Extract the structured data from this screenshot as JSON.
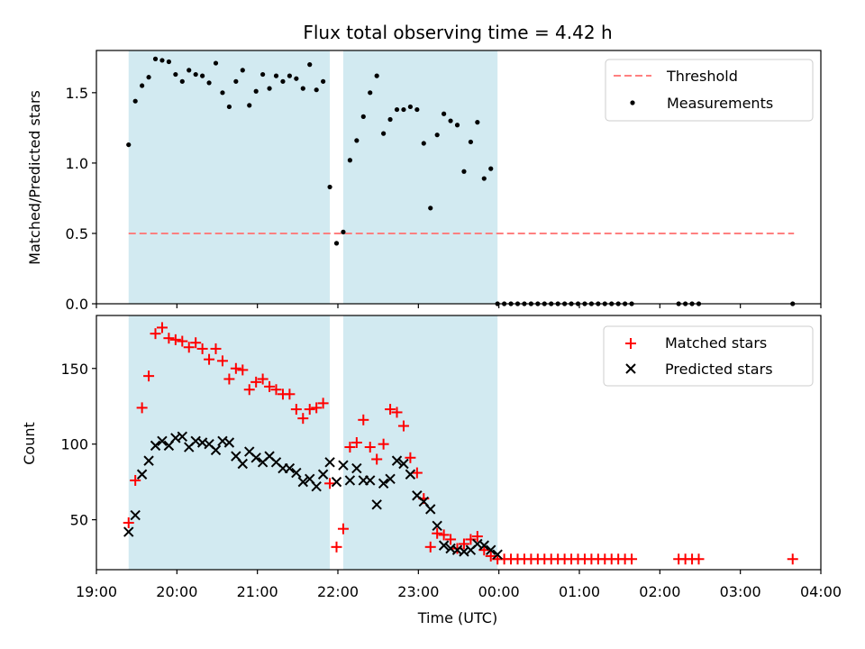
{
  "figure": {
    "title": "Flux total observing time = 4.42 h"
  },
  "chart_data": [
    {
      "type": "scatter",
      "panel": "top",
      "xlabel": "",
      "ylabel": "Matched/Predicted stars",
      "xlim": [
        "19:00",
        "04:00"
      ],
      "ylim": [
        0,
        1.8
      ],
      "yticks": [
        0.0,
        0.5,
        1.0,
        1.5
      ],
      "shaded_intervals": [
        [
          "19:24",
          "21:54"
        ],
        [
          "22:04",
          "23:59"
        ]
      ],
      "threshold": {
        "name": "Threshold",
        "value": 0.5,
        "x_range": [
          "19:24",
          "03:40"
        ],
        "color": "#ff8080",
        "style": "dashed"
      },
      "legend": {
        "position": "upper right",
        "entries": [
          "Threshold",
          "Measurements"
        ]
      },
      "series": [
        {
          "name": "Measurements",
          "marker": "dot",
          "color": "#000000",
          "x": [
            "19:24",
            "19:29",
            "19:34",
            "19:39",
            "19:44",
            "19:49",
            "19:54",
            "19:59",
            "20:04",
            "20:09",
            "20:14",
            "20:19",
            "20:24",
            "20:29",
            "20:34",
            "20:39",
            "20:44",
            "20:49",
            "20:54",
            "20:59",
            "21:04",
            "21:09",
            "21:14",
            "21:19",
            "21:24",
            "21:29",
            "21:34",
            "21:39",
            "21:44",
            "21:49",
            "21:54",
            "21:59",
            "22:04",
            "22:09",
            "22:14",
            "22:19",
            "22:24",
            "22:29",
            "22:34",
            "22:39",
            "22:44",
            "22:49",
            "22:54",
            "22:59",
            "23:04",
            "23:09",
            "23:14",
            "23:19",
            "23:24",
            "23:29",
            "23:34",
            "23:39",
            "23:44",
            "23:49",
            "23:54",
            "23:59",
            "00:04",
            "00:09",
            "00:14",
            "00:19",
            "00:24",
            "00:29",
            "00:34",
            "00:39",
            "00:44",
            "00:49",
            "00:54",
            "00:59",
            "01:04",
            "01:09",
            "01:14",
            "01:19",
            "01:24",
            "01:29",
            "01:34",
            "01:39",
            "02:14",
            "02:19",
            "02:24",
            "02:29",
            "03:39"
          ],
          "y": [
            1.13,
            1.44,
            1.55,
            1.61,
            1.74,
            1.73,
            1.72,
            1.63,
            1.58,
            1.66,
            1.63,
            1.62,
            1.57,
            1.71,
            1.5,
            1.4,
            1.58,
            1.66,
            1.41,
            1.51,
            1.63,
            1.53,
            1.62,
            1.58,
            1.62,
            1.6,
            1.53,
            1.7,
            1.52,
            1.58,
            0.83,
            0.43,
            0.51,
            1.02,
            1.16,
            1.33,
            1.5,
            1.62,
            1.21,
            1.31,
            1.38,
            1.38,
            1.4,
            1.38,
            1.14,
            0.68,
            1.2,
            1.35,
            1.3,
            1.27,
            0.94,
            1.15,
            1.29,
            0.89,
            0.96,
            0.0,
            0.0,
            0.0,
            0.0,
            0.0,
            0.0,
            0.0,
            0.0,
            0.0,
            0.0,
            0.0,
            0.0,
            0.0,
            0.0,
            0.0,
            0.0,
            0.0,
            0.0,
            0.0,
            0.0,
            0.0,
            0.0,
            0.0,
            0.0,
            0.0,
            0.0
          ]
        }
      ]
    },
    {
      "type": "scatter",
      "panel": "bottom",
      "xlabel": "Time (UTC)",
      "ylabel": "Count",
      "xlim": [
        "19:00",
        "04:00"
      ],
      "ylim": [
        17,
        185
      ],
      "xticks": [
        "19:00",
        "20:00",
        "21:00",
        "22:00",
        "23:00",
        "00:00",
        "01:00",
        "02:00",
        "03:00",
        "04:00"
      ],
      "yticks": [
        50,
        100,
        150
      ],
      "shaded_intervals": [
        [
          "19:24",
          "21:54"
        ],
        [
          "22:04",
          "23:59"
        ]
      ],
      "legend": {
        "position": "upper right",
        "entries": [
          "Matched stars",
          "Predicted stars"
        ]
      },
      "series": [
        {
          "name": "Matched stars",
          "marker": "plus",
          "color": "#ff0000",
          "x": [
            "19:24",
            "19:29",
            "19:34",
            "19:39",
            "19:44",
            "19:49",
            "19:54",
            "19:59",
            "20:04",
            "20:09",
            "20:14",
            "20:19",
            "20:24",
            "20:29",
            "20:34",
            "20:39",
            "20:44",
            "20:49",
            "20:54",
            "20:59",
            "21:04",
            "21:09",
            "21:14",
            "21:19",
            "21:24",
            "21:29",
            "21:34",
            "21:39",
            "21:44",
            "21:49",
            "21:54",
            "21:59",
            "22:04",
            "22:09",
            "22:14",
            "22:19",
            "22:24",
            "22:29",
            "22:34",
            "22:39",
            "22:44",
            "22:49",
            "22:54",
            "22:59",
            "23:04",
            "23:09",
            "23:14",
            "23:19",
            "23:24",
            "23:29",
            "23:34",
            "23:39",
            "23:44",
            "23:49",
            "23:54",
            "23:59",
            "00:04",
            "00:09",
            "00:14",
            "00:19",
            "00:24",
            "00:29",
            "00:34",
            "00:39",
            "00:44",
            "00:49",
            "00:54",
            "00:59",
            "01:04",
            "01:09",
            "01:14",
            "01:19",
            "01:24",
            "01:29",
            "01:34",
            "01:39",
            "02:14",
            "02:19",
            "02:24",
            "02:29",
            "03:39"
          ],
          "y": [
            48,
            76,
            124,
            145,
            173,
            177,
            170,
            169,
            168,
            164,
            167,
            163,
            156,
            163,
            155,
            143,
            150,
            149,
            136,
            141,
            143,
            138,
            136,
            133,
            133,
            123,
            117,
            123,
            124,
            127,
            74,
            32,
            44,
            98,
            101,
            116,
            98,
            90,
            100,
            123,
            121,
            112,
            91,
            81,
            64,
            32,
            41,
            40,
            37,
            31,
            34,
            37,
            39,
            30,
            26,
            24,
            24,
            24,
            24,
            24,
            24,
            24,
            24,
            24,
            24,
            24,
            24,
            24,
            24,
            24,
            24,
            24,
            24,
            24,
            24,
            24,
            24,
            24,
            24,
            24,
            24
          ]
        },
        {
          "name": "Predicted stars",
          "marker": "x",
          "color": "#000000",
          "x": [
            "19:24",
            "19:29",
            "19:34",
            "19:39",
            "19:44",
            "19:49",
            "19:54",
            "19:59",
            "20:04",
            "20:09",
            "20:14",
            "20:19",
            "20:24",
            "20:29",
            "20:34",
            "20:39",
            "20:44",
            "20:49",
            "20:54",
            "20:59",
            "21:04",
            "21:09",
            "21:14",
            "21:19",
            "21:24",
            "21:29",
            "21:34",
            "21:39",
            "21:44",
            "21:49",
            "21:54",
            "21:59",
            "22:04",
            "22:09",
            "22:14",
            "22:19",
            "22:24",
            "22:29",
            "22:34",
            "22:39",
            "22:44",
            "22:49",
            "22:54",
            "22:59",
            "23:04",
            "23:09",
            "23:14",
            "23:19",
            "23:24",
            "23:29",
            "23:34",
            "23:39",
            "23:44",
            "23:49",
            "23:54",
            "23:59"
          ],
          "y": [
            42,
            53,
            80,
            89,
            99,
            102,
            99,
            104,
            105,
            98,
            102,
            101,
            100,
            96,
            102,
            101,
            92,
            87,
            95,
            91,
            88,
            92,
            88,
            84,
            84,
            81,
            75,
            77,
            72,
            80,
            88,
            75,
            86,
            76,
            84,
            76,
            76,
            60,
            74,
            77,
            89,
            87,
            80,
            66,
            62,
            57,
            46,
            33,
            31,
            30,
            29,
            30,
            34,
            33,
            30,
            27
          ]
        }
      ]
    }
  ]
}
